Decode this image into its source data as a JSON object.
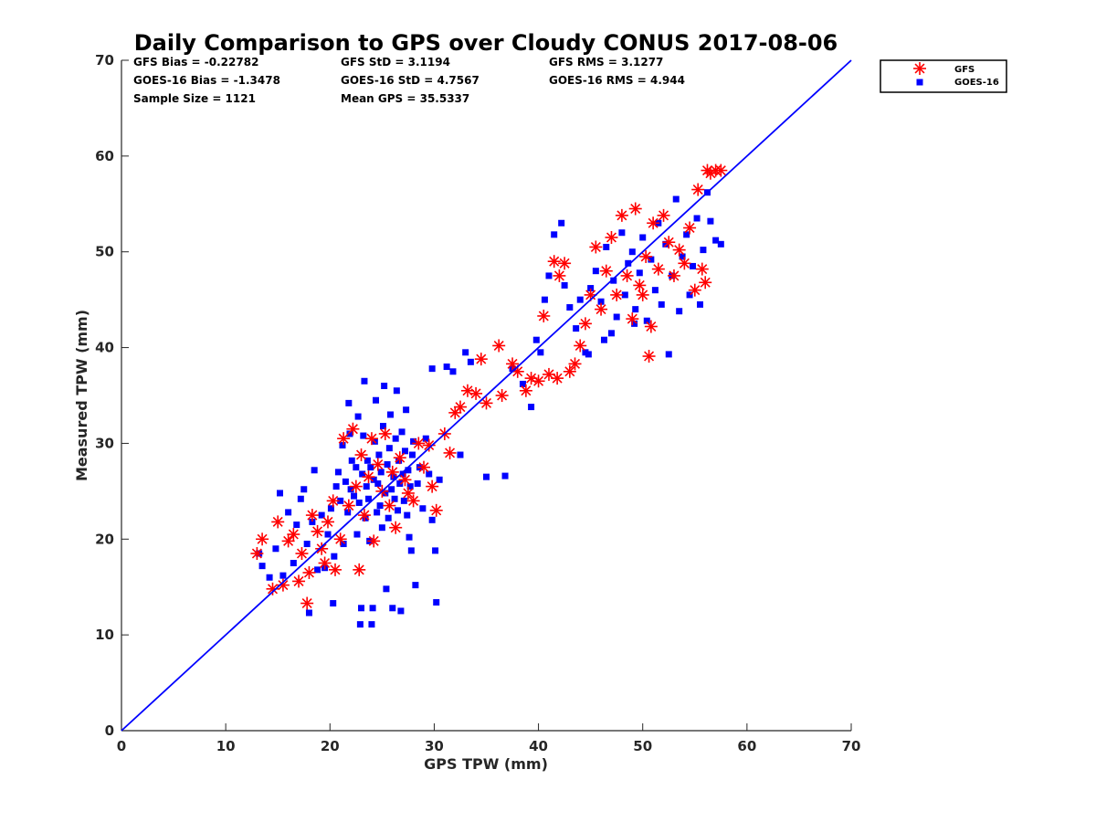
{
  "chart_data": {
    "type": "scatter",
    "title": "Daily Comparison to GPS over Cloudy CONUS 2017-08-06",
    "xlabel": "GPS TPW (mm)",
    "ylabel": "Measured TPW (mm)",
    "xlim": [
      0,
      70
    ],
    "ylim": [
      0,
      70
    ],
    "xticks": [
      0,
      10,
      20,
      30,
      40,
      50,
      60,
      70
    ],
    "yticks": [
      0,
      10,
      20,
      30,
      40,
      50,
      60,
      70
    ],
    "grid": false,
    "legend_position": "outside-top-right",
    "stats": [
      [
        "GFS Bias = -0.22782",
        "GFS StD = 3.1194",
        "GFS RMS = 3.1277"
      ],
      [
        "GOES-16 Bias = -1.3478",
        "GOES-16 StD = 4.7567",
        "GOES-16 RMS = 4.944"
      ],
      [
        "Sample Size = 1121",
        "Mean GPS = 35.5337",
        ""
      ]
    ],
    "reference_line": {
      "x": [
        0,
        70
      ],
      "y": [
        0,
        70
      ],
      "color": "#0000ff"
    },
    "series": [
      {
        "name": "GOES-16",
        "marker": "square",
        "color": "#0000ff",
        "points": [
          [
            13.2,
            18.5
          ],
          [
            13.5,
            17.2
          ],
          [
            14.2,
            16
          ],
          [
            14.8,
            19
          ],
          [
            15.2,
            24.8
          ],
          [
            15.5,
            16.2
          ],
          [
            16,
            22.8
          ],
          [
            16.5,
            17.5
          ],
          [
            16.8,
            21.5
          ],
          [
            17.2,
            24.2
          ],
          [
            17.5,
            25.2
          ],
          [
            17.8,
            19.5
          ],
          [
            18,
            12.3
          ],
          [
            18.3,
            21.8
          ],
          [
            18.5,
            27.2
          ],
          [
            18.8,
            16.8
          ],
          [
            19.2,
            22.5
          ],
          [
            19.5,
            17
          ],
          [
            19.8,
            20.5
          ],
          [
            20.1,
            23.2
          ],
          [
            20.3,
            13.3
          ],
          [
            20.4,
            18.2
          ],
          [
            20.6,
            25.5
          ],
          [
            20.8,
            27
          ],
          [
            21,
            24
          ],
          [
            21.2,
            29.8
          ],
          [
            21.3,
            19.5
          ],
          [
            21.5,
            26
          ],
          [
            21.7,
            22.8
          ],
          [
            21.8,
            34.2
          ],
          [
            21.9,
            31
          ],
          [
            22,
            25.2
          ],
          [
            22.1,
            28.2
          ],
          [
            22.3,
            24.5
          ],
          [
            22.5,
            27.5
          ],
          [
            22.6,
            20.5
          ],
          [
            22.7,
            32.8
          ],
          [
            22.8,
            23.8
          ],
          [
            22.9,
            11.1
          ],
          [
            23,
            12.8
          ],
          [
            23.1,
            26.8
          ],
          [
            23.2,
            30.8
          ],
          [
            23.3,
            36.5
          ],
          [
            23.4,
            22.2
          ],
          [
            23.5,
            25.5
          ],
          [
            23.6,
            28.2
          ],
          [
            23.7,
            24.2
          ],
          [
            23.8,
            19.8
          ],
          [
            23.9,
            27.5
          ],
          [
            24,
            11.1
          ],
          [
            24.1,
            12.8
          ],
          [
            24.2,
            26.2
          ],
          [
            24.3,
            30.2
          ],
          [
            24.4,
            34.5
          ],
          [
            24.5,
            22.8
          ],
          [
            24.6,
            25.8
          ],
          [
            24.7,
            28.8
          ],
          [
            24.8,
            23.5
          ],
          [
            24.9,
            27
          ],
          [
            25,
            21.2
          ],
          [
            25.1,
            31.8
          ],
          [
            25.2,
            36
          ],
          [
            25.3,
            24.8
          ],
          [
            25.4,
            14.8
          ],
          [
            25.5,
            27.8
          ],
          [
            25.6,
            22.2
          ],
          [
            25.7,
            29.5
          ],
          [
            25.8,
            33
          ],
          [
            25.9,
            25.2
          ],
          [
            26,
            12.8
          ],
          [
            26.1,
            26.5
          ],
          [
            26.2,
            24.2
          ],
          [
            26.3,
            30.5
          ],
          [
            26.4,
            35.5
          ],
          [
            26.5,
            23
          ],
          [
            26.6,
            28.2
          ],
          [
            26.7,
            25.8
          ],
          [
            26.8,
            12.5
          ],
          [
            26.9,
            31.2
          ],
          [
            27,
            26.8
          ],
          [
            27.1,
            24
          ],
          [
            27.2,
            29.2
          ],
          [
            27.3,
            33.5
          ],
          [
            27.4,
            22.5
          ],
          [
            27.5,
            27.2
          ],
          [
            27.6,
            20.2
          ],
          [
            27.7,
            25.5
          ],
          [
            27.8,
            18.8
          ],
          [
            27.9,
            28.8
          ],
          [
            28,
            30.2
          ],
          [
            28.2,
            15.2
          ],
          [
            28.4,
            25.8
          ],
          [
            28.6,
            27.5
          ],
          [
            28.9,
            23.2
          ],
          [
            29.2,
            30.5
          ],
          [
            29.5,
            26.8
          ],
          [
            29.8,
            22
          ],
          [
            30.1,
            18.8
          ],
          [
            30.2,
            13.4
          ],
          [
            30.5,
            26.2
          ],
          [
            29.8,
            37.8
          ],
          [
            31.2,
            38
          ],
          [
            31.8,
            37.5
          ],
          [
            33,
            39.5
          ],
          [
            33.5,
            38.5
          ],
          [
            32.5,
            28.8
          ],
          [
            35,
            26.5
          ],
          [
            36.8,
            26.6
          ],
          [
            37.5,
            37.8
          ],
          [
            38.5,
            36.2
          ],
          [
            39.3,
            33.8
          ],
          [
            39.8,
            40.8
          ],
          [
            40.2,
            39.5
          ],
          [
            40.6,
            45
          ],
          [
            41,
            47.5
          ],
          [
            41.5,
            51.8
          ],
          [
            42.2,
            53
          ],
          [
            42.5,
            46.5
          ],
          [
            43,
            44.2
          ],
          [
            43.6,
            42
          ],
          [
            44,
            45
          ],
          [
            44.5,
            39.5
          ],
          [
            45,
            46.2
          ],
          [
            45.5,
            48
          ],
          [
            46,
            44.8
          ],
          [
            46.5,
            50.5
          ],
          [
            47,
            41.5
          ],
          [
            47.2,
            47
          ],
          [
            47.5,
            43.2
          ],
          [
            48,
            52
          ],
          [
            48.3,
            45.5
          ],
          [
            48.6,
            48.8
          ],
          [
            49,
            50
          ],
          [
            49.3,
            44
          ],
          [
            49.7,
            47.8
          ],
          [
            50,
            51.5
          ],
          [
            50.4,
            42.8
          ],
          [
            50.8,
            49.2
          ],
          [
            51.2,
            46
          ],
          [
            51.5,
            53
          ],
          [
            51.8,
            44.5
          ],
          [
            52.2,
            50.8
          ],
          [
            52.5,
            39.3
          ],
          [
            52.8,
            47.5
          ],
          [
            53.2,
            55.5
          ],
          [
            53.5,
            43.8
          ],
          [
            53.8,
            49.5
          ],
          [
            54.2,
            51.8
          ],
          [
            54.5,
            45.5
          ],
          [
            54.8,
            48.5
          ],
          [
            55.2,
            53.5
          ],
          [
            55.5,
            44.5
          ],
          [
            55.8,
            50.2
          ],
          [
            56.2,
            56.2
          ],
          [
            56.5,
            53.2
          ],
          [
            57,
            51.2
          ],
          [
            57.5,
            50.8
          ],
          [
            49.2,
            42.5
          ],
          [
            46.3,
            40.8
          ],
          [
            44.8,
            39.3
          ]
        ]
      },
      {
        "name": "GFS",
        "marker": "asterisk",
        "color": "#ff0000",
        "points": [
          [
            13,
            18.5
          ],
          [
            13.5,
            20
          ],
          [
            14.5,
            14.8
          ],
          [
            15,
            21.8
          ],
          [
            15.5,
            15.2
          ],
          [
            16,
            19.8
          ],
          [
            16.5,
            20.5
          ],
          [
            17,
            15.6
          ],
          [
            17.3,
            18.5
          ],
          [
            17.8,
            13.3
          ],
          [
            18,
            16.5
          ],
          [
            18.3,
            22.5
          ],
          [
            18.8,
            20.8
          ],
          [
            19.2,
            19
          ],
          [
            19.5,
            17.5
          ],
          [
            19.8,
            21.8
          ],
          [
            20.3,
            24
          ],
          [
            20.5,
            16.8
          ],
          [
            21,
            20
          ],
          [
            21.3,
            30.5
          ],
          [
            21.8,
            23.5
          ],
          [
            22.2,
            31.5
          ],
          [
            22.5,
            25.5
          ],
          [
            22.8,
            16.8
          ],
          [
            23,
            28.8
          ],
          [
            23.3,
            22.5
          ],
          [
            23.7,
            26.5
          ],
          [
            24,
            30.5
          ],
          [
            24.2,
            19.8
          ],
          [
            24.6,
            27.8
          ],
          [
            25,
            25
          ],
          [
            25.3,
            31
          ],
          [
            25.7,
            23.5
          ],
          [
            26,
            27
          ],
          [
            26.3,
            21.2
          ],
          [
            26.7,
            28.5
          ],
          [
            27.2,
            26.2
          ],
          [
            27.5,
            24.8
          ],
          [
            28,
            24
          ],
          [
            28.5,
            30
          ],
          [
            29,
            27.5
          ],
          [
            29.5,
            29.8
          ],
          [
            29.8,
            25.5
          ],
          [
            30.2,
            23
          ],
          [
            31,
            31
          ],
          [
            31.5,
            29
          ],
          [
            32,
            33.2
          ],
          [
            32.5,
            33.8
          ],
          [
            33.2,
            35.5
          ],
          [
            34,
            35.2
          ],
          [
            34.5,
            38.8
          ],
          [
            35,
            34.2
          ],
          [
            36.2,
            40.2
          ],
          [
            36.5,
            35
          ],
          [
            37.5,
            38.3
          ],
          [
            38,
            37.5
          ],
          [
            38.8,
            35.5
          ],
          [
            39.3,
            36.8
          ],
          [
            40,
            36.5
          ],
          [
            40.5,
            43.3
          ],
          [
            41,
            37.2
          ],
          [
            41.5,
            49
          ],
          [
            41.8,
            36.8
          ],
          [
            42,
            47.5
          ],
          [
            42.5,
            48.8
          ],
          [
            43,
            37.5
          ],
          [
            43.5,
            38.3
          ],
          [
            44,
            40.2
          ],
          [
            44.5,
            42.5
          ],
          [
            45,
            45.5
          ],
          [
            45.5,
            50.5
          ],
          [
            46,
            44
          ],
          [
            46.5,
            48
          ],
          [
            47,
            51.5
          ],
          [
            47.5,
            45.5
          ],
          [
            48,
            53.8
          ],
          [
            48.5,
            47.5
          ],
          [
            49,
            43
          ],
          [
            49.3,
            54.5
          ],
          [
            49.7,
            46.5
          ],
          [
            50,
            45.5
          ],
          [
            50.3,
            49.5
          ],
          [
            50.6,
            39.1
          ],
          [
            51,
            53
          ],
          [
            51.5,
            48.2
          ],
          [
            52,
            53.8
          ],
          [
            52.5,
            51
          ],
          [
            53,
            47.5
          ],
          [
            53.5,
            50.2
          ],
          [
            54,
            48.8
          ],
          [
            54.5,
            52.5
          ],
          [
            55,
            46
          ],
          [
            55.3,
            56.5
          ],
          [
            55.7,
            48.2
          ],
          [
            56,
            46.8
          ],
          [
            56.2,
            58.5
          ],
          [
            56.5,
            58.2
          ],
          [
            57,
            58.5
          ],
          [
            57.5,
            58.5
          ],
          [
            50.8,
            42.2
          ]
        ]
      }
    ]
  }
}
